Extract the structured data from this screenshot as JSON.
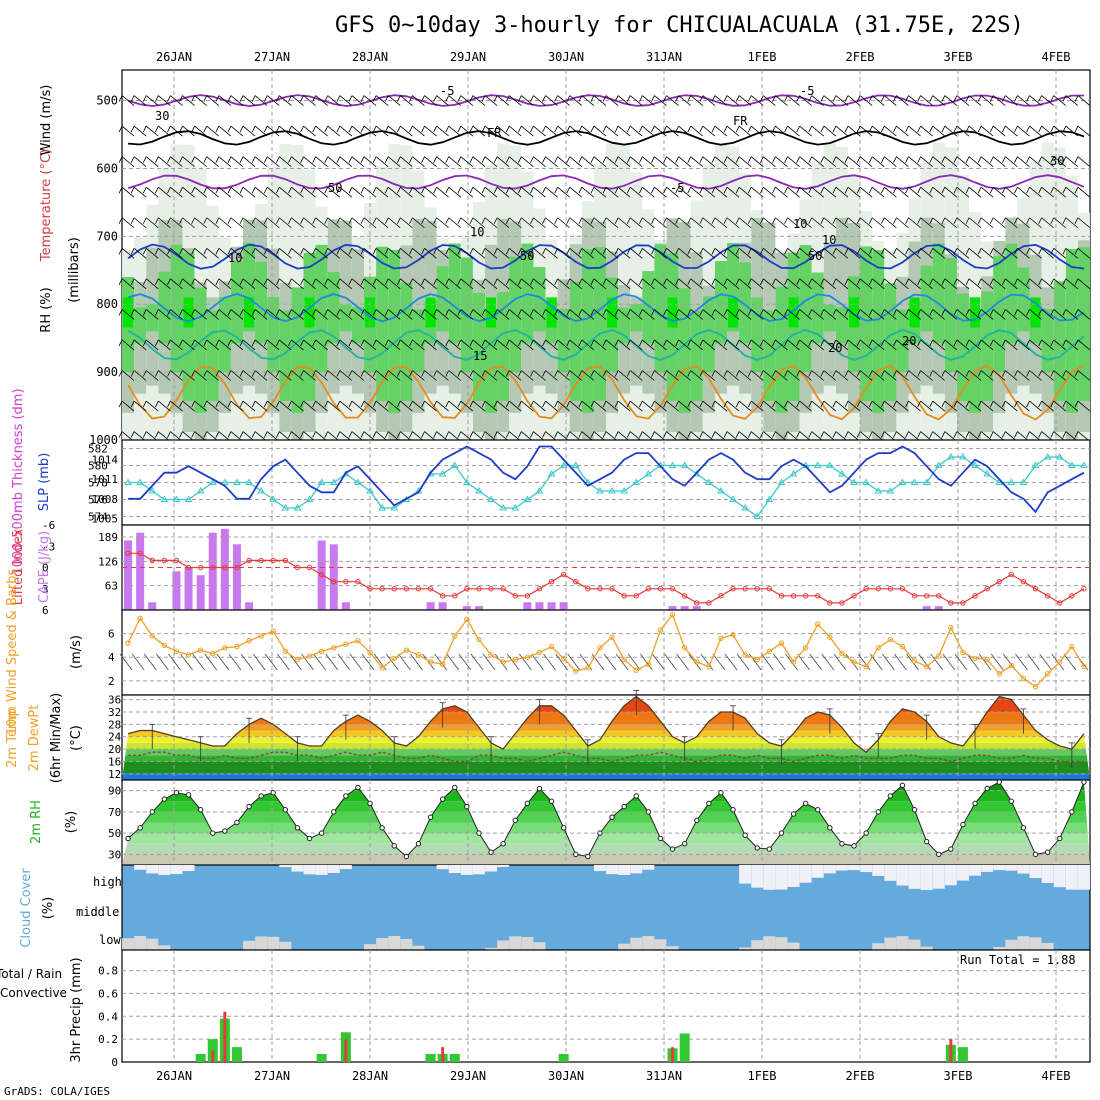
{
  "title": "GFS 0~10day 3-hourly for CHICUALACUALA (31.75E, 22S)",
  "footer": "GrADS: COLA/IGES",
  "days": [
    "26JAN",
    "27JAN",
    "28JAN",
    "29JAN",
    "30JAN",
    "31JAN",
    "1FEB",
    "2FEB",
    "3FEB",
    "4FEB"
  ],
  "colors": {
    "grid": "#a0a0a0",
    "rh_light": "#e6f0e6",
    "rh_mid": "#b4c8b4",
    "rh_green": "#64d264",
    "rh_bright": "#00e600",
    "slp": "#1e3cc8",
    "thick": "#3cc8c8",
    "li": "#e63c3c",
    "cape": "#c878f0",
    "wind": "#f0a028",
    "rain_total": "#32c832",
    "rain_conv": "#e63c3c",
    "cloud": "#64aadc"
  },
  "panels": {
    "upper": {
      "ylabel_wind": "Wind (m/s)",
      "ylabel_temp": "Temperature (°C)",
      "ylabel_rh": "RH (%)",
      "ylabel_unit": "(millibars)",
      "levels": [
        "500",
        "600",
        "700",
        "800",
        "900",
        "1000"
      ],
      "contour_labels": [
        "-5",
        "-5",
        "-5",
        "FR",
        "FR",
        "10",
        "10",
        "15",
        "20",
        "20",
        "10",
        "30",
        "30",
        "50",
        "50",
        "50",
        "10"
      ]
    },
    "slp": {
      "ylabel_left": "1000-500mb Thickness (dm)",
      "ylabel_right": "SLP (mb)",
      "left_ticks": [
        "582",
        "580",
        "578",
        "576",
        "574"
      ],
      "right_ticks": [
        "1014",
        "1011",
        "1008",
        "1005"
      ]
    },
    "li": {
      "ylabel_left": "Lifted Index",
      "ylabel_right": "CAPE (J/kg)",
      "left_ticks": [
        "-6",
        "-3",
        "0",
        "3",
        "6"
      ],
      "right_ticks": [
        "189",
        "126",
        "63"
      ]
    },
    "wind": {
      "ylabel": "10m Wind Speed & Barbs",
      "unit": "(m/s)",
      "ticks": [
        "6",
        "4",
        "2"
      ]
    },
    "temp": {
      "ylabel": "2m Temp 2m DewPt (6hr Min/Max)",
      "unit": "(°C)",
      "ticks": [
        "36",
        "32",
        "28",
        "24",
        "20",
        "16",
        "12"
      ]
    },
    "rh": {
      "ylabel": "2m RH",
      "unit": "(%)",
      "ticks": [
        "90",
        "70",
        "50",
        "30"
      ]
    },
    "cloud": {
      "ylabel": "Cloud Cover",
      "unit": "(%)",
      "levels": [
        "high",
        "middle",
        "low"
      ]
    },
    "precip": {
      "ylabel": "3hr Precip (mm)",
      "legend_total": "Total / Rain",
      "legend_conv": "Convective",
      "run_total": "Run Total = 1.88",
      "ticks": [
        "0.8",
        "0.6",
        "0.4",
        "0.2",
        "0"
      ]
    }
  },
  "chart_data": {
    "type": "line",
    "x_start": "26JAN",
    "times": 80,
    "slp_mb": [
      1008,
      1008,
      1010,
      1012,
      1012,
      1013,
      1012,
      1011,
      1010,
      1008,
      1008,
      1011,
      1013,
      1014,
      1012,
      1010,
      1009,
      1009,
      1012,
      1013,
      1011,
      1009,
      1007,
      1008,
      1009,
      1012,
      1014,
      1015,
      1016,
      1015,
      1014,
      1012,
      1011,
      1013,
      1016,
      1016,
      1014,
      1012,
      1010,
      1011,
      1012,
      1014,
      1015,
      1015,
      1013,
      1011,
      1010,
      1012,
      1014,
      1015,
      1014,
      1012,
      1011,
      1011,
      1013,
      1014,
      1013,
      1011,
      1009,
      1010,
      1012,
      1014,
      1015,
      1015,
      1016,
      1015,
      1013,
      1011,
      1010,
      1012,
      1014,
      1013,
      1011,
      1009,
      1008,
      1006,
      1009,
      1010,
      1011,
      1012
    ],
    "thickness_dm": [
      578,
      578,
      577,
      576,
      576,
      576,
      577,
      578,
      578,
      578,
      578,
      577,
      576,
      575,
      575,
      576,
      578,
      578,
      579,
      578,
      577,
      575,
      575,
      576,
      577,
      579,
      579,
      580,
      578,
      577,
      576,
      575,
      575,
      576,
      577,
      579,
      580,
      580,
      578,
      577,
      577,
      577,
      578,
      579,
      580,
      580,
      580,
      579,
      578,
      577,
      576,
      575,
      574,
      576,
      578,
      579,
      580,
      580,
      580,
      579,
      578,
      578,
      577,
      577,
      578,
      578,
      578,
      580,
      581,
      581,
      580,
      579,
      578,
      578,
      578,
      580,
      581,
      581,
      580,
      580
    ],
    "lifted_index": [
      -2,
      -2,
      -1,
      -1,
      -1,
      0,
      0,
      0,
      0,
      0,
      -1,
      -1,
      -1,
      -1,
      0,
      0,
      1,
      2,
      2,
      2,
      3,
      3,
      3,
      3,
      3,
      3,
      4,
      4,
      3,
      3,
      3,
      3,
      4,
      4,
      3,
      2,
      1,
      2,
      3,
      3,
      3,
      4,
      4,
      3,
      3,
      3,
      4,
      5,
      5,
      4,
      3,
      3,
      3,
      3,
      4,
      4,
      4,
      4,
      5,
      5,
      4,
      3,
      3,
      3,
      3,
      4,
      4,
      4,
      5,
      5,
      4,
      3,
      2,
      1,
      2,
      3,
      4,
      5,
      4,
      3
    ],
    "cape_jkg": [
      180,
      200,
      20,
      0,
      100,
      110,
      90,
      200,
      210,
      170,
      20,
      0,
      0,
      0,
      0,
      0,
      180,
      170,
      20,
      0,
      0,
      0,
      0,
      0,
      0,
      20,
      20,
      0,
      10,
      10,
      0,
      0,
      0,
      20,
      20,
      20,
      20,
      0,
      0,
      0,
      0,
      0,
      0,
      0,
      0,
      10,
      10,
      10,
      0,
      0,
      0,
      0,
      0,
      0,
      0,
      0,
      0,
      0,
      0,
      0,
      0,
      0,
      0,
      0,
      0,
      0,
      10,
      10,
      0,
      0,
      0,
      0,
      0,
      0,
      0,
      0,
      0,
      0,
      0,
      0
    ],
    "wind_ms": [
      5.2,
      7.3,
      5.8,
      5.0,
      4.5,
      4.2,
      4.6,
      4.3,
      4.8,
      4.9,
      5.4,
      5.8,
      6.2,
      4.5,
      3.8,
      4.1,
      4.5,
      4.8,
      5.1,
      5.4,
      4.4,
      3.1,
      3.9,
      4.6,
      4.2,
      3.6,
      3.4,
      5.8,
      7.2,
      5.5,
      4.2,
      3.6,
      3.8,
      4.0,
      4.4,
      4.9,
      3.9,
      2.8,
      3.1,
      4.8,
      5.7,
      3.8,
      2.9,
      3.4,
      6.3,
      7.6,
      4.8,
      3.6,
      3.2,
      5.6,
      5.9,
      4.2,
      3.8,
      4.5,
      5.2,
      3.6,
      4.8,
      6.8,
      5.7,
      4.3,
      3.6,
      3.2,
      4.8,
      5.5,
      4.9,
      3.7,
      3.2,
      4.1,
      6.5,
      4.4,
      3.9,
      3.8,
      2.6,
      3.3,
      2.2,
      1.5,
      2.6,
      3.6,
      4.9,
      3.2
    ],
    "temp_c": [
      25,
      26,
      26,
      25,
      24,
      23,
      22,
      21,
      21,
      25,
      28,
      30,
      28,
      25,
      22,
      21,
      21,
      26,
      29,
      31,
      29,
      26,
      22,
      21,
      24,
      29,
      33,
      34,
      32,
      27,
      22,
      20,
      25,
      30,
      34,
      34,
      31,
      26,
      21,
      23,
      29,
      34,
      37,
      34,
      29,
      24,
      22,
      24,
      29,
      32,
      32,
      30,
      25,
      22,
      21,
      25,
      30,
      32,
      31,
      27,
      22,
      19,
      23,
      29,
      33,
      32,
      29,
      24,
      22,
      21,
      26,
      32,
      37,
      36,
      31,
      26,
      23,
      21,
      20,
      25
    ],
    "dewpt_c": [
      18,
      18,
      19,
      19,
      18,
      18,
      17,
      17,
      18,
      17,
      17,
      18,
      19,
      19,
      18,
      18,
      17,
      18,
      19,
      18,
      18,
      19,
      18,
      17,
      17,
      18,
      17,
      16,
      16,
      18,
      18,
      17,
      17,
      16,
      17,
      18,
      19,
      18,
      17,
      17,
      16,
      17,
      18,
      18,
      19,
      18,
      17,
      16,
      17,
      18,
      18,
      17,
      18,
      17,
      17,
      16,
      17,
      18,
      18,
      17,
      18,
      17,
      17,
      17,
      18,
      18,
      17,
      17,
      16,
      17,
      18,
      18,
      17,
      17,
      18,
      17,
      17,
      16,
      16,
      16
    ],
    "rh_pct": [
      45,
      55,
      70,
      82,
      88,
      86,
      72,
      50,
      52,
      60,
      75,
      85,
      88,
      72,
      55,
      45,
      50,
      70,
      85,
      93,
      78,
      55,
      38,
      28,
      40,
      65,
      82,
      93,
      75,
      50,
      32,
      40,
      62,
      78,
      92,
      80,
      55,
      30,
      28,
      50,
      65,
      75,
      85,
      70,
      45,
      35,
      40,
      62,
      78,
      88,
      72,
      48,
      36,
      35,
      50,
      68,
      78,
      72,
      55,
      40,
      38,
      50,
      70,
      85,
      95,
      72,
      42,
      30,
      35,
      58,
      78,
      92,
      98,
      80,
      55,
      30,
      32,
      45,
      70,
      98
    ]
  }
}
